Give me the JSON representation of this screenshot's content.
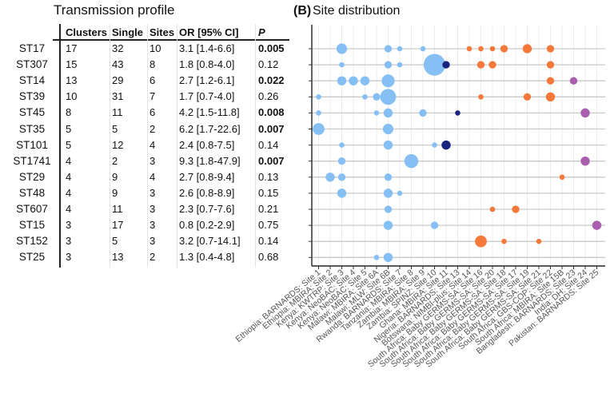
{
  "table": {
    "title": "Transmission profile",
    "headers": [
      "Clusters",
      "Single",
      "Sites",
      "OR [95% CI]",
      "P"
    ],
    "rows": [
      {
        "st": "ST17",
        "clusters": "17",
        "single": "32",
        "sites": "10",
        "or": "3.1 [1.4-6.6]",
        "p": "0.005",
        "significant": true
      },
      {
        "st": "ST307",
        "clusters": "15",
        "single": "43",
        "sites": "8",
        "or": "1.8 [0.8-4.0]",
        "p": "0.12",
        "significant": false
      },
      {
        "st": "ST14",
        "clusters": "13",
        "single": "29",
        "sites": "6",
        "or": "2.7 [1.2-6.1]",
        "p": "0.022",
        "significant": true
      },
      {
        "st": "ST39",
        "clusters": "10",
        "single": "31",
        "sites": "7",
        "or": "1.7 [0.7-4.0]",
        "p": "0.26",
        "significant": false
      },
      {
        "st": "ST45",
        "clusters": "8",
        "single": "11",
        "sites": "6",
        "or": "4.2 [1.5-11.8]",
        "p": "0.008",
        "significant": true
      },
      {
        "st": "ST35",
        "clusters": "5",
        "single": "5",
        "sites": "2",
        "or": "6.2 [1.7-22.6]",
        "p": "0.007",
        "significant": true
      },
      {
        "st": "ST101",
        "clusters": "5",
        "single": "12",
        "sites": "4",
        "or": "2.4 [0.8-7.5]",
        "p": "0.14",
        "significant": false
      },
      {
        "st": "ST1741",
        "clusters": "4",
        "single": "2",
        "sites": "3",
        "or": "9.3 [1.8-47.9]",
        "p": "0.007",
        "significant": true
      },
      {
        "st": "ST29",
        "clusters": "4",
        "single": "9",
        "sites": "4",
        "or": "2.7 [0.8-9.4]",
        "p": "0.13",
        "significant": false
      },
      {
        "st": "ST48",
        "clusters": "4",
        "single": "9",
        "sites": "3",
        "or": "2.6 [0.8-8.9]",
        "p": "0.15",
        "significant": false
      },
      {
        "st": "ST607",
        "clusters": "4",
        "single": "11",
        "sites": "3",
        "or": "2.3 [0.7-7.6]",
        "p": "0.21",
        "significant": false
      },
      {
        "st": "ST15",
        "clusters": "3",
        "single": "17",
        "sites": "3",
        "or": "0.8 [0.2-2.9]",
        "p": "0.75",
        "significant": false
      },
      {
        "st": "ST152",
        "clusters": "3",
        "single": "5",
        "sites": "3",
        "or": "3.2 [0.7-14.1]",
        "p": "0.14",
        "significant": false
      },
      {
        "st": "ST25",
        "clusters": "3",
        "single": "13",
        "sites": "2",
        "or": "1.3 [0.4-4.8]",
        "p": "0.68",
        "significant": false
      }
    ]
  },
  "chart_data": {
    "type": "scatter",
    "subtype": "dot-matrix (bubble)",
    "panel_label": "(B)",
    "title": "Site distribution",
    "xlabel": "",
    "ylabel": "",
    "grid": true,
    "categories_y": [
      "ST17",
      "ST307",
      "ST14",
      "ST39",
      "ST45",
      "ST35",
      "ST101",
      "ST1741",
      "ST29",
      "ST48",
      "ST607",
      "ST15",
      "ST152",
      "ST25"
    ],
    "sites": [
      {
        "label": "Ethiopia: BARNARDS: Site 1",
        "region": "east"
      },
      {
        "label": "Ethiopia: MBIRA: Site 2",
        "region": "east"
      },
      {
        "label": "Kenya: KWTRP: Site 3",
        "region": "east"
      },
      {
        "label": "Kenya: NeoBAC: Site 4",
        "region": "east"
      },
      {
        "label": "Kenya: NeoBAC: Site 5",
        "region": "east"
      },
      {
        "label": "Malawi: MBIRA: Site 6A",
        "region": "east"
      },
      {
        "label": "Malawi: MLW: Site 6B",
        "region": "east"
      },
      {
        "label": "Rwanda: BARNARDS: Site 7",
        "region": "east"
      },
      {
        "label": "Tanzania: MBIRA: Site 8",
        "region": "east"
      },
      {
        "label": "Zambia: MBIRA: Site 9",
        "region": "east"
      },
      {
        "label": "Zambia: SPINZ: Site 10",
        "region": "east"
      },
      {
        "label": "Ghana: MBIRA: Site 11",
        "region": "west"
      },
      {
        "label": "Nigeria: BARNARDS: Site 13",
        "region": "west"
      },
      {
        "label": "Botswana: NIMBI-plus: Site 14",
        "region": "south"
      },
      {
        "label": "South Africa: Baby GERMS-SA: Site 16",
        "region": "south"
      },
      {
        "label": "South Africa: Baby GERMS-SA: Site 20",
        "region": "south"
      },
      {
        "label": "South Africa: Baby GERMS-SA: Site 18",
        "region": "south"
      },
      {
        "label": "South Africa: Baby GERMS-SA: Site 17",
        "region": "south"
      },
      {
        "label": "South Africa: Baby GERMS-SA: Site 19",
        "region": "south"
      },
      {
        "label": "South Africa: Baby GERMS-SA: Site 21",
        "region": "south"
      },
      {
        "label": "South Africa: GBS-COP: Site 22",
        "region": "south"
      },
      {
        "label": "South Africa: MBIRA: Site 15B",
        "region": "south"
      },
      {
        "label": "Bangladesh: BARNARDS: Site 23",
        "region": "asia"
      },
      {
        "label": "India: DH: Site 24",
        "region": "asia"
      },
      {
        "label": "Pakistan: BARNARDS: Site 25",
        "region": "asia"
      }
    ],
    "region_colors": {
      "east": "#85bff3",
      "west": "#1a237e",
      "south": "#f4793a",
      "asia": "#a95fad"
    },
    "size_note": "relative bubble size (estimated count)",
    "points": [
      {
        "st": "ST17",
        "site": 3,
        "n": 4
      },
      {
        "st": "ST17",
        "site": 7,
        "n": 2
      },
      {
        "st": "ST17",
        "site": 8,
        "n": 1
      },
      {
        "st": "ST17",
        "site": 10,
        "n": 1
      },
      {
        "st": "ST17",
        "site": 14,
        "n": 1
      },
      {
        "st": "ST17",
        "site": 15,
        "n": 1
      },
      {
        "st": "ST17",
        "site": 16,
        "n": 1
      },
      {
        "st": "ST17",
        "site": 17,
        "n": 2
      },
      {
        "st": "ST17",
        "site": 19,
        "n": 3
      },
      {
        "st": "ST17",
        "site": 21,
        "n": 2
      },
      {
        "st": "ST307",
        "site": 3,
        "n": 1
      },
      {
        "st": "ST307",
        "site": 7,
        "n": 2
      },
      {
        "st": "ST307",
        "site": 8,
        "n": 1
      },
      {
        "st": "ST307",
        "site": 11,
        "n": 17
      },
      {
        "st": "ST307",
        "site": 12,
        "n": 2
      },
      {
        "st": "ST307",
        "site": 15,
        "n": 2
      },
      {
        "st": "ST307",
        "site": 16,
        "n": 2
      },
      {
        "st": "ST307",
        "site": 21,
        "n": 2
      },
      {
        "st": "ST14",
        "site": 3,
        "n": 3
      },
      {
        "st": "ST14",
        "site": 4,
        "n": 3
      },
      {
        "st": "ST14",
        "site": 5,
        "n": 3
      },
      {
        "st": "ST14",
        "site": 7,
        "n": 6
      },
      {
        "st": "ST14",
        "site": 21,
        "n": 2
      },
      {
        "st": "ST14",
        "site": 23,
        "n": 2
      },
      {
        "st": "ST39",
        "site": 1,
        "n": 1
      },
      {
        "st": "ST39",
        "site": 5,
        "n": 1
      },
      {
        "st": "ST39",
        "site": 6,
        "n": 2
      },
      {
        "st": "ST39",
        "site": 7,
        "n": 9
      },
      {
        "st": "ST39",
        "site": 15,
        "n": 1
      },
      {
        "st": "ST39",
        "site": 19,
        "n": 2
      },
      {
        "st": "ST39",
        "site": 21,
        "n": 3
      },
      {
        "st": "ST45",
        "site": 1,
        "n": 1
      },
      {
        "st": "ST45",
        "site": 6,
        "n": 1
      },
      {
        "st": "ST45",
        "site": 7,
        "n": 3
      },
      {
        "st": "ST45",
        "site": 10,
        "n": 2
      },
      {
        "st": "ST45",
        "site": 13,
        "n": 1
      },
      {
        "st": "ST45",
        "site": 24,
        "n": 3
      },
      {
        "st": "ST35",
        "site": 1,
        "n": 5
      },
      {
        "st": "ST35",
        "site": 7,
        "n": 4
      },
      {
        "st": "ST101",
        "site": 3,
        "n": 1
      },
      {
        "st": "ST101",
        "site": 7,
        "n": 3
      },
      {
        "st": "ST101",
        "site": 11,
        "n": 1
      },
      {
        "st": "ST101",
        "site": 12,
        "n": 3
      },
      {
        "st": "ST1741",
        "site": 3,
        "n": 2
      },
      {
        "st": "ST1741",
        "site": 9,
        "n": 7
      },
      {
        "st": "ST1741",
        "site": 24,
        "n": 3
      },
      {
        "st": "ST29",
        "site": 2,
        "n": 3
      },
      {
        "st": "ST29",
        "site": 3,
        "n": 2
      },
      {
        "st": "ST29",
        "site": 7,
        "n": 2
      },
      {
        "st": "ST29",
        "site": 22,
        "n": 1
      },
      {
        "st": "ST48",
        "site": 3,
        "n": 3
      },
      {
        "st": "ST48",
        "site": 7,
        "n": 3
      },
      {
        "st": "ST48",
        "site": 8,
        "n": 1
      },
      {
        "st": "ST607",
        "site": 7,
        "n": 2
      },
      {
        "st": "ST607",
        "site": 16,
        "n": 1
      },
      {
        "st": "ST607",
        "site": 18,
        "n": 2
      },
      {
        "st": "ST15",
        "site": 7,
        "n": 3
      },
      {
        "st": "ST15",
        "site": 11,
        "n": 2
      },
      {
        "st": "ST15",
        "site": 25,
        "n": 3
      },
      {
        "st": "ST152",
        "site": 15,
        "n": 5
      },
      {
        "st": "ST152",
        "site": 17,
        "n": 1
      },
      {
        "st": "ST152",
        "site": 20,
        "n": 1
      },
      {
        "st": "ST25",
        "site": 6,
        "n": 1
      },
      {
        "st": "ST25",
        "site": 7,
        "n": 3
      }
    ]
  }
}
